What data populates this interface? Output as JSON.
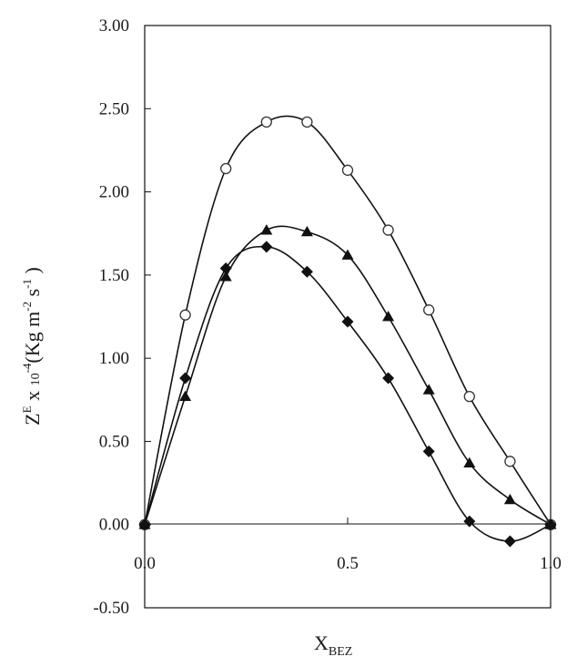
{
  "chart_data": {
    "type": "line",
    "xlabel": {
      "main": "X",
      "sub": "BEZ"
    },
    "ylabel": {
      "z": "Z",
      "z_sup": "E",
      "x": " x ",
      "ten": "10",
      "ten_sup": "-4",
      "unit_open": "(Kg m",
      "m_sup": "-2",
      "s": " s",
      "s_sup": "-1",
      "unit_close": " )"
    },
    "xlim": [
      0,
      1
    ],
    "ylim": [
      -0.5,
      3.0
    ],
    "x_ticks": [
      {
        "value": 0.0,
        "label": "0.0"
      },
      {
        "value": 0.5,
        "label": "0.5"
      },
      {
        "value": 1.0,
        "label": "1.0"
      }
    ],
    "y_ticks": [
      {
        "value": 3.0,
        "label": "3.00"
      },
      {
        "value": 2.5,
        "label": "2.50"
      },
      {
        "value": 2.0,
        "label": "2.00"
      },
      {
        "value": 1.5,
        "label": "1.50"
      },
      {
        "value": 1.0,
        "label": "1.00"
      },
      {
        "value": 0.5,
        "label": "0.50"
      },
      {
        "value": 0.0,
        "label": "0.00"
      },
      {
        "value": -0.5,
        "label": "-0.50"
      }
    ],
    "series": [
      {
        "name": "circle",
        "marker": "circle-open",
        "x": [
          0,
          0.1,
          0.2,
          0.3,
          0.4,
          0.5,
          0.6,
          0.7,
          0.8,
          0.9,
          1.0
        ],
        "y": [
          0,
          1.26,
          2.14,
          2.42,
          2.42,
          2.13,
          1.77,
          1.29,
          0.77,
          0.38,
          0
        ]
      },
      {
        "name": "triangle",
        "marker": "triangle-filled",
        "x": [
          0,
          0.1,
          0.2,
          0.3,
          0.4,
          0.5,
          0.6,
          0.7,
          0.8,
          0.9,
          1.0
        ],
        "y": [
          0,
          0.77,
          1.49,
          1.77,
          1.76,
          1.62,
          1.25,
          0.81,
          0.37,
          0.15,
          0
        ]
      },
      {
        "name": "diamond",
        "marker": "diamond-filled",
        "x": [
          0,
          0.1,
          0.2,
          0.3,
          0.4,
          0.5,
          0.6,
          0.7,
          0.8,
          0.9,
          1.0
        ],
        "y": [
          0,
          0.88,
          1.54,
          1.67,
          1.52,
          1.22,
          0.88,
          0.44,
          0.02,
          -0.1,
          0
        ]
      }
    ]
  }
}
